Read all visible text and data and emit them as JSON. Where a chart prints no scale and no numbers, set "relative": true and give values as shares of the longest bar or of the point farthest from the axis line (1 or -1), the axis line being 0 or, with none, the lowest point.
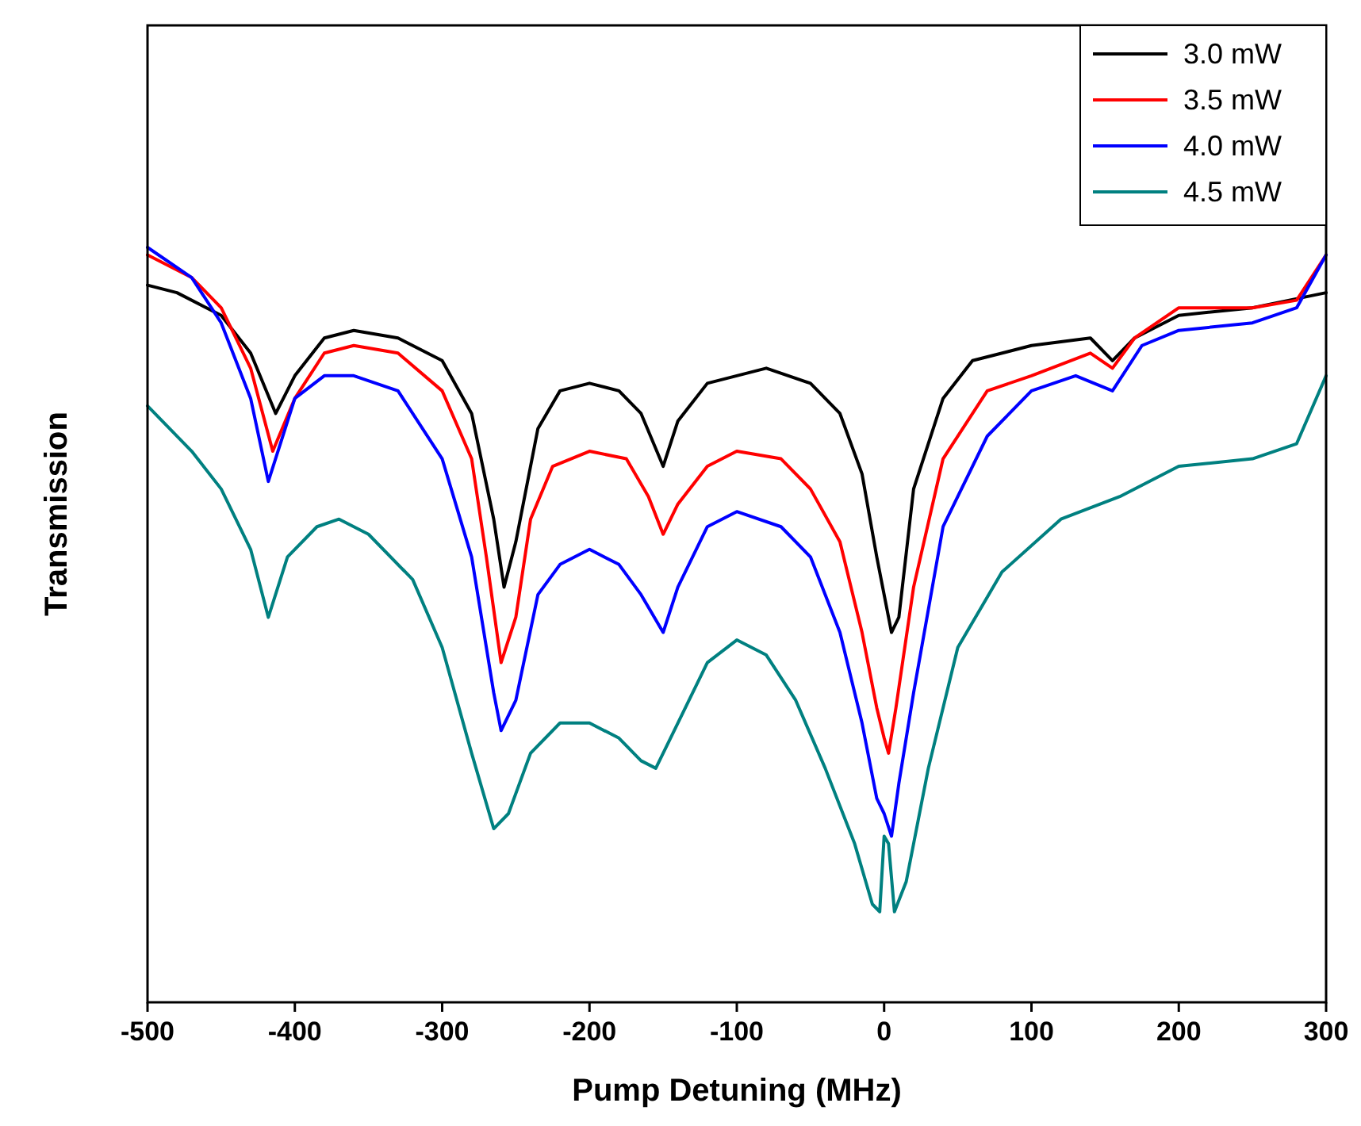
{
  "chart_data": {
    "type": "line",
    "xlabel": "Pump Detuning (MHz)",
    "ylabel": "Transmission",
    "relative": true,
    "xlim": [
      -500,
      300
    ],
    "xticks": [
      -500,
      -400,
      -300,
      -200,
      -100,
      0,
      100,
      200,
      300
    ],
    "tick_labels": "x",
    "legend": "top right",
    "grid": false,
    "line_style": "solid",
    "series": [
      {
        "name": "3.0 mW",
        "color": "#000000",
        "x": [
          -500,
          -480,
          -450,
          -430,
          -413,
          -400,
          -380,
          -360,
          -330,
          -300,
          -280,
          -265,
          -258,
          -250,
          -235,
          -220,
          -200,
          -180,
          -165,
          -150,
          -140,
          -120,
          -100,
          -80,
          -50,
          -30,
          -15,
          -5,
          5,
          10,
          20,
          40,
          60,
          100,
          140,
          155,
          170,
          200,
          250,
          300
        ],
        "values": [
          0.95,
          0.94,
          0.91,
          0.86,
          0.78,
          0.83,
          0.88,
          0.89,
          0.88,
          0.85,
          0.78,
          0.64,
          0.55,
          0.61,
          0.76,
          0.81,
          0.82,
          0.81,
          0.78,
          0.71,
          0.77,
          0.82,
          0.83,
          0.84,
          0.82,
          0.78,
          0.7,
          0.59,
          0.49,
          0.51,
          0.68,
          0.8,
          0.85,
          0.87,
          0.88,
          0.85,
          0.88,
          0.91,
          0.92,
          0.94
        ]
      },
      {
        "name": "3.5 mW",
        "color": "#ff0000",
        "x": [
          -500,
          -470,
          -450,
          -430,
          -415,
          -400,
          -380,
          -360,
          -330,
          -300,
          -280,
          -270,
          -260,
          -250,
          -240,
          -225,
          -200,
          -175,
          -160,
          -150,
          -140,
          -120,
          -100,
          -70,
          -50,
          -30,
          -15,
          -5,
          0,
          3,
          8,
          20,
          40,
          70,
          100,
          140,
          155,
          170,
          200,
          250,
          280,
          300
        ],
        "values": [
          0.99,
          0.96,
          0.92,
          0.84,
          0.73,
          0.8,
          0.86,
          0.87,
          0.86,
          0.81,
          0.72,
          0.59,
          0.45,
          0.51,
          0.64,
          0.71,
          0.73,
          0.72,
          0.67,
          0.62,
          0.66,
          0.71,
          0.73,
          0.72,
          0.68,
          0.61,
          0.49,
          0.39,
          0.35,
          0.33,
          0.39,
          0.55,
          0.72,
          0.81,
          0.83,
          0.86,
          0.84,
          0.88,
          0.92,
          0.92,
          0.93,
          0.99
        ]
      },
      {
        "name": "4.0 mW",
        "color": "#0000ff",
        "x": [
          -500,
          -470,
          -450,
          -430,
          -418,
          -400,
          -380,
          -360,
          -330,
          -300,
          -280,
          -265,
          -260,
          -250,
          -235,
          -220,
          -200,
          -180,
          -165,
          -150,
          -140,
          -120,
          -100,
          -70,
          -50,
          -30,
          -15,
          -5,
          0,
          5,
          10,
          20,
          40,
          70,
          100,
          130,
          155,
          175,
          200,
          250,
          280,
          300
        ],
        "values": [
          1.0,
          0.96,
          0.9,
          0.8,
          0.69,
          0.8,
          0.83,
          0.83,
          0.81,
          0.72,
          0.59,
          0.41,
          0.36,
          0.4,
          0.54,
          0.58,
          0.6,
          0.58,
          0.54,
          0.49,
          0.55,
          0.63,
          0.65,
          0.63,
          0.59,
          0.49,
          0.37,
          0.27,
          0.25,
          0.22,
          0.29,
          0.41,
          0.63,
          0.75,
          0.81,
          0.83,
          0.81,
          0.87,
          0.89,
          0.9,
          0.92,
          0.99
        ]
      },
      {
        "name": "4.5 mW",
        "color": "#008080",
        "x": [
          -500,
          -470,
          -450,
          -430,
          -418,
          -405,
          -385,
          -370,
          -350,
          -320,
          -300,
          -280,
          -265,
          -255,
          -240,
          -220,
          -200,
          -180,
          -165,
          -155,
          -140,
          -120,
          -100,
          -80,
          -60,
          -40,
          -20,
          -8,
          -3,
          0,
          3,
          7,
          15,
          30,
          50,
          80,
          120,
          160,
          200,
          250,
          280,
          300
        ],
        "values": [
          0.79,
          0.73,
          0.68,
          0.6,
          0.51,
          0.59,
          0.63,
          0.64,
          0.62,
          0.56,
          0.47,
          0.33,
          0.23,
          0.25,
          0.33,
          0.37,
          0.37,
          0.35,
          0.32,
          0.31,
          0.37,
          0.45,
          0.48,
          0.46,
          0.4,
          0.31,
          0.21,
          0.13,
          0.12,
          0.22,
          0.21,
          0.12,
          0.16,
          0.31,
          0.47,
          0.57,
          0.64,
          0.67,
          0.71,
          0.72,
          0.74,
          0.83
        ]
      }
    ]
  }
}
